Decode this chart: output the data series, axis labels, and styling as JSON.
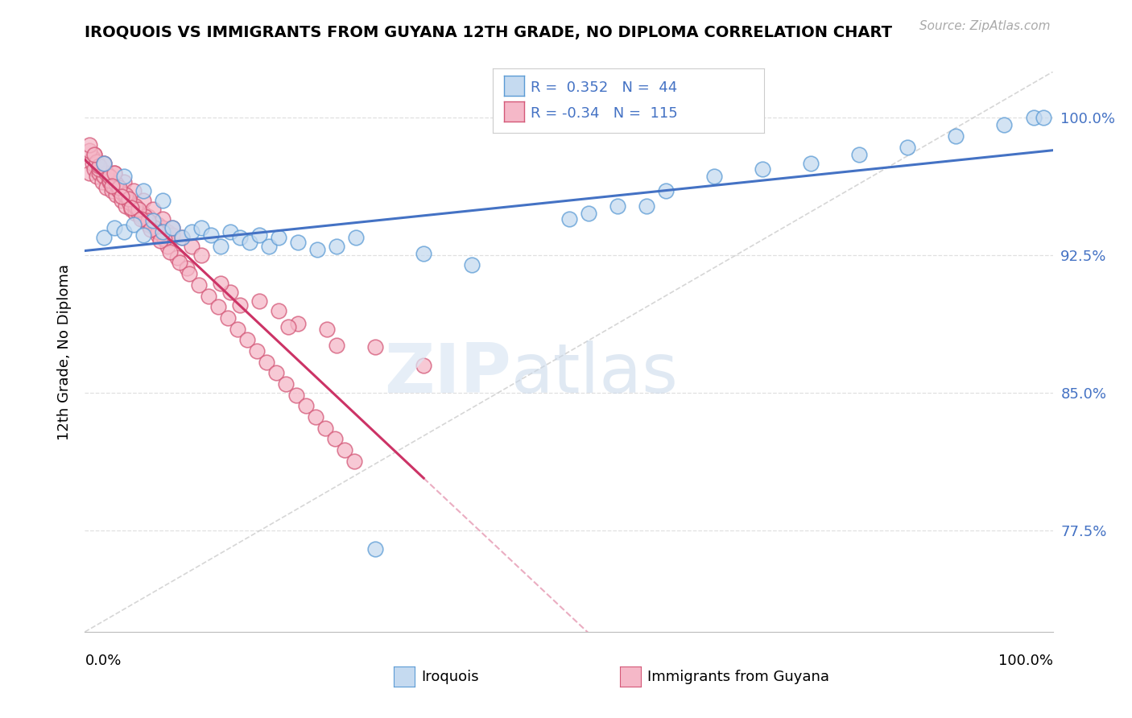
{
  "title": "IROQUOIS VS IMMIGRANTS FROM GUYANA 12TH GRADE, NO DIPLOMA CORRELATION CHART",
  "source": "Source: ZipAtlas.com",
  "ylabel": "12th Grade, No Diploma",
  "legend_label1": "Iroquois",
  "legend_label2": "Immigrants from Guyana",
  "r1": 0.352,
  "n1": 44,
  "r2": -0.34,
  "n2": 115,
  "xlim": [
    0.0,
    1.0
  ],
  "ylim": [
    0.72,
    1.025
  ],
  "yticks": [
    0.775,
    0.85,
    0.925,
    1.0
  ],
  "ytick_labels": [
    "77.5%",
    "85.0%",
    "92.5%",
    "100.0%"
  ],
  "color_iroquois_fill": "#c5daf0",
  "color_iroquois_edge": "#5b9bd5",
  "color_guyana_fill": "#f5b8c8",
  "color_guyana_edge": "#d45878",
  "color_line_iroquois": "#4472c4",
  "color_line_guyana": "#cc3366",
  "color_dashed_ref": "#cccccc",
  "color_grid": "#e0e0e0",
  "iroquois_x": [
    0.02,
    0.03,
    0.04,
    0.05,
    0.06,
    0.07,
    0.08,
    0.09,
    0.1,
    0.11,
    0.12,
    0.13,
    0.14,
    0.15,
    0.16,
    0.17,
    0.18,
    0.19,
    0.2,
    0.22,
    0.24,
    0.26,
    0.28,
    0.3,
    0.35,
    0.4,
    0.02,
    0.04,
    0.06,
    0.08,
    0.55,
    0.6,
    0.65,
    0.7,
    0.75,
    0.8,
    0.85,
    0.9,
    0.95,
    0.98,
    0.5,
    0.52,
    0.58,
    0.99
  ],
  "iroquois_y": [
    0.935,
    0.94,
    0.938,
    0.942,
    0.936,
    0.944,
    0.938,
    0.94,
    0.935,
    0.938,
    0.94,
    0.936,
    0.93,
    0.938,
    0.935,
    0.932,
    0.936,
    0.93,
    0.935,
    0.932,
    0.928,
    0.93,
    0.935,
    0.765,
    0.926,
    0.92,
    0.975,
    0.968,
    0.96,
    0.955,
    0.952,
    0.96,
    0.968,
    0.972,
    0.975,
    0.98,
    0.984,
    0.99,
    0.996,
    1.0,
    0.945,
    0.948,
    0.952,
    1.0
  ],
  "guyana_x": [
    0.005,
    0.008,
    0.01,
    0.012,
    0.015,
    0.018,
    0.02,
    0.022,
    0.025,
    0.028,
    0.03,
    0.032,
    0.035,
    0.038,
    0.04,
    0.042,
    0.045,
    0.048,
    0.05,
    0.052,
    0.055,
    0.058,
    0.06,
    0.062,
    0.065,
    0.068,
    0.07,
    0.072,
    0.075,
    0.078,
    0.08,
    0.082,
    0.085,
    0.088,
    0.09,
    0.01,
    0.02,
    0.03,
    0.04,
    0.05,
    0.06,
    0.07,
    0.08,
    0.09,
    0.1,
    0.11,
    0.12,
    0.008,
    0.015,
    0.025,
    0.035,
    0.045,
    0.055,
    0.065,
    0.075,
    0.085,
    0.095,
    0.105,
    0.005,
    0.012,
    0.022,
    0.032,
    0.042,
    0.052,
    0.062,
    0.072,
    0.082,
    0.015,
    0.025,
    0.035,
    0.045,
    0.055,
    0.065,
    0.075,
    0.005,
    0.01,
    0.02,
    0.03,
    0.15,
    0.2,
    0.25,
    0.3,
    0.35,
    0.14,
    0.18,
    0.22,
    0.26,
    0.16,
    0.21,
    0.028,
    0.038,
    0.048,
    0.058,
    0.068,
    0.078,
    0.088,
    0.098,
    0.108,
    0.118,
    0.128,
    0.138,
    0.148,
    0.158,
    0.168,
    0.178,
    0.188,
    0.198,
    0.208,
    0.218,
    0.228,
    0.238,
    0.248,
    0.258,
    0.268,
    0.278
  ],
  "guyana_y": [
    0.97,
    0.975,
    0.972,
    0.968,
    0.97,
    0.965,
    0.968,
    0.962,
    0.965,
    0.96,
    0.962,
    0.958,
    0.96,
    0.955,
    0.958,
    0.952,
    0.955,
    0.95,
    0.952,
    0.948,
    0.95,
    0.946,
    0.948,
    0.944,
    0.946,
    0.942,
    0.944,
    0.94,
    0.942,
    0.938,
    0.94,
    0.936,
    0.938,
    0.934,
    0.936,
    0.98,
    0.975,
    0.97,
    0.965,
    0.96,
    0.955,
    0.95,
    0.945,
    0.94,
    0.935,
    0.93,
    0.925,
    0.978,
    0.972,
    0.966,
    0.96,
    0.954,
    0.948,
    0.942,
    0.936,
    0.93,
    0.924,
    0.918,
    0.982,
    0.976,
    0.97,
    0.964,
    0.958,
    0.952,
    0.946,
    0.94,
    0.934,
    0.974,
    0.968,
    0.962,
    0.956,
    0.95,
    0.944,
    0.938,
    0.985,
    0.98,
    0.975,
    0.97,
    0.905,
    0.895,
    0.885,
    0.875,
    0.865,
    0.91,
    0.9,
    0.888,
    0.876,
    0.898,
    0.886,
    0.963,
    0.957,
    0.951,
    0.945,
    0.939,
    0.933,
    0.927,
    0.921,
    0.915,
    0.909,
    0.903,
    0.897,
    0.891,
    0.885,
    0.879,
    0.873,
    0.867,
    0.861,
    0.855,
    0.849,
    0.843,
    0.837,
    0.831,
    0.825,
    0.819,
    0.813
  ]
}
